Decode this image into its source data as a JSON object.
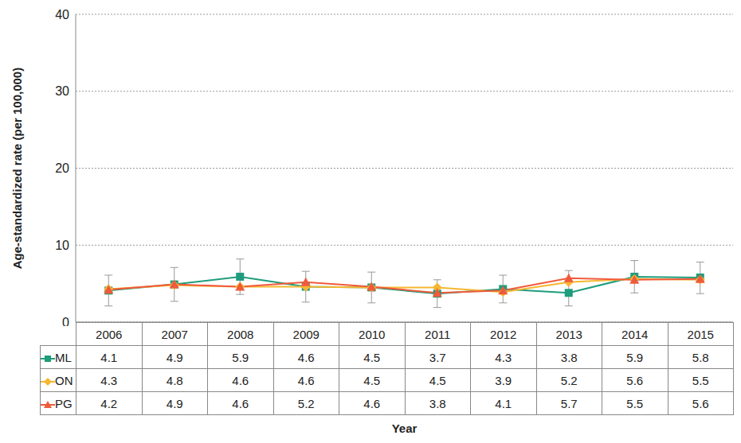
{
  "chart_data": {
    "type": "line",
    "x_label": "Year",
    "y_label": "Age-standardized rate (per 100,000)",
    "categories": [
      "2006",
      "2007",
      "2008",
      "2009",
      "2010",
      "2011",
      "2012",
      "2013",
      "2014",
      "2015"
    ],
    "series": [
      {
        "name": "ML",
        "color": "#1e9c7c",
        "marker": "square",
        "values": [
          4.1,
          4.9,
          5.9,
          4.6,
          4.5,
          3.7,
          4.3,
          3.8,
          5.9,
          5.8
        ],
        "ci": [
          [
            2.1,
            6.1
          ],
          [
            2.7,
            7.1
          ],
          [
            3.6,
            8.2
          ],
          [
            2.6,
            6.6
          ],
          [
            2.5,
            6.5
          ],
          [
            1.9,
            5.5
          ],
          [
            2.5,
            6.1
          ],
          [
            2.1,
            6.7
          ],
          [
            3.8,
            8.0
          ],
          [
            3.7,
            7.8
          ]
        ]
      },
      {
        "name": "ON",
        "color": "#f5b731",
        "marker": "diamond",
        "values": [
          4.3,
          4.8,
          4.6,
          4.6,
          4.5,
          4.5,
          3.9,
          5.2,
          5.6,
          5.5
        ]
      },
      {
        "name": "PG",
        "color": "#f05a3c",
        "marker": "triangle",
        "values": [
          4.2,
          4.9,
          4.6,
          5.2,
          4.6,
          3.8,
          4.1,
          5.7,
          5.5,
          5.6
        ]
      }
    ],
    "ylim": [
      0,
      40
    ],
    "yticks": [
      0,
      10,
      20,
      30,
      40
    ],
    "grid": true
  }
}
